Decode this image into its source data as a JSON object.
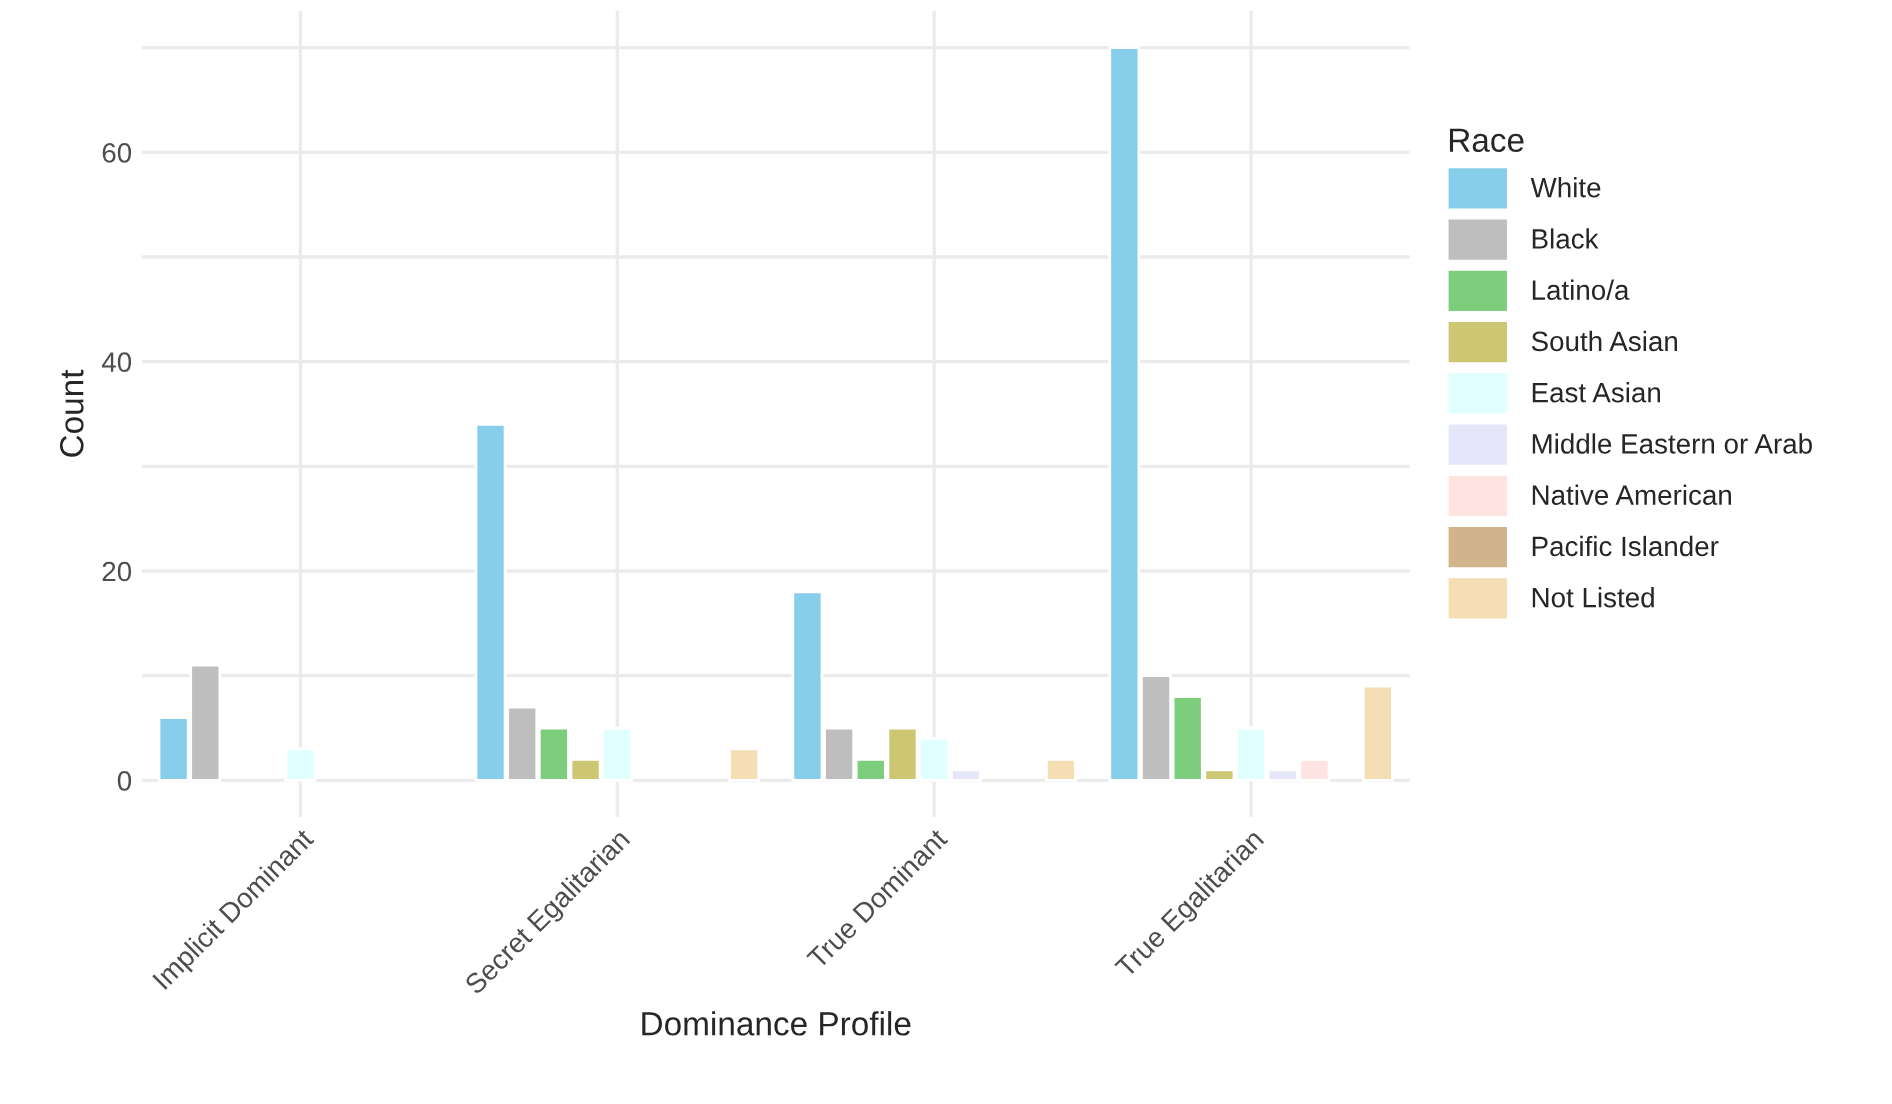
{
  "chart_data": {
    "type": "bar",
    "xlabel": "Dominance Profile",
    "ylabel": "Count",
    "legend_title": "Race",
    "categories": [
      "Implicit Dominant",
      "Secret Egalitarian",
      "True Dominant",
      "True Egalitarian"
    ],
    "series": [
      {
        "name": "White",
        "color": "#87ceeb",
        "values": [
          6,
          34,
          18,
          70
        ]
      },
      {
        "name": "Black",
        "color": "#bebebe",
        "values": [
          11,
          7,
          5,
          10
        ]
      },
      {
        "name": "Latino/a",
        "color": "#7ccd7c",
        "values": [
          null,
          5,
          2,
          8
        ]
      },
      {
        "name": "South Asian",
        "color": "#cdc673",
        "values": [
          null,
          2,
          5,
          1
        ]
      },
      {
        "name": "East Asian",
        "color": "#e0ffff",
        "values": [
          3,
          5,
          4,
          5
        ]
      },
      {
        "name": "Middle Eastern or Arab",
        "color": "#e6e6fa",
        "values": [
          null,
          null,
          1,
          1
        ]
      },
      {
        "name": "Native American",
        "color": "#ffe4e1",
        "values": [
          null,
          null,
          null,
          2
        ]
      },
      {
        "name": "Pacific Islander",
        "color": "#d2b48c",
        "values": [
          null,
          null,
          null,
          null
        ]
      },
      {
        "name": "Not Listed",
        "color": "#f5deb3",
        "values": [
          null,
          3,
          2,
          9
        ]
      }
    ],
    "ylim": [
      -3.5,
      73.5
    ],
    "yticks": [
      0,
      {
        "value": 10,
        "label": null
      },
      20,
      {
        "value": 30,
        "label": null
      },
      40,
      {
        "value": 50,
        "label": null
      },
      60,
      {
        "value": 70,
        "label": null
      }
    ],
    "grid": true,
    "legend": "right"
  }
}
